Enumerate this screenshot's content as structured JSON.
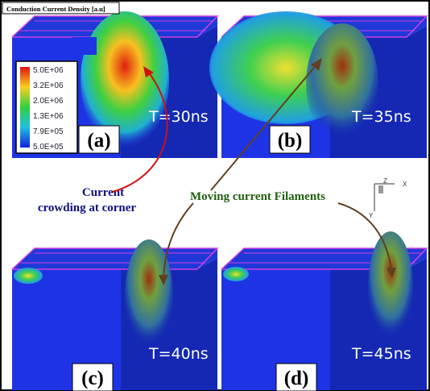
{
  "title": "Conduction Current Density [a.u]",
  "colorbar": {
    "labels": [
      "5.0E+06",
      "3.2E+06",
      "2.0E+06",
      "1.3E+06",
      "7.9E+05",
      "5.0E+05"
    ]
  },
  "panels": [
    {
      "label": "(a)",
      "time": "T=30ns"
    },
    {
      "label": "(b)",
      "time": "T=35ns"
    },
    {
      "label": "(c)",
      "time": "T=40ns"
    },
    {
      "label": "(d)",
      "time": "T=45ns"
    }
  ],
  "annotations": {
    "corner": [
      "Current",
      "crowding at corner"
    ],
    "filaments": "Moving current Filaments"
  },
  "axes": {
    "z": "Z",
    "x": "X",
    "y": "Y"
  }
}
